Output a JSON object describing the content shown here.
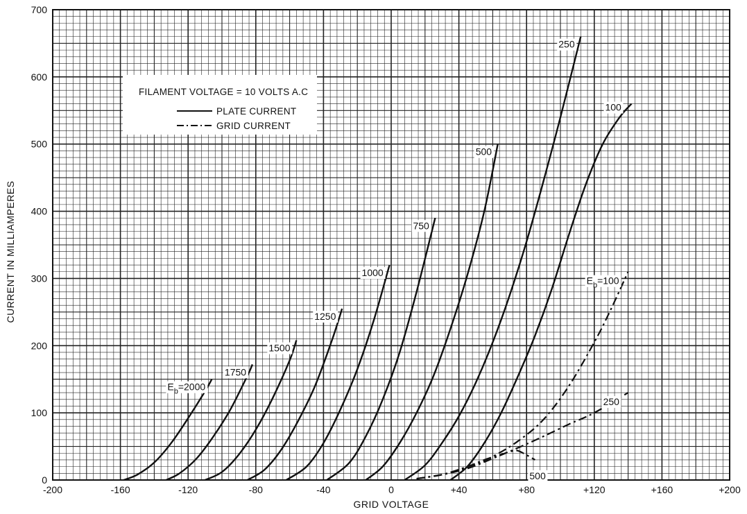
{
  "chart_data": {
    "type": "line",
    "xlabel": "GRID VOLTAGE",
    "ylabel": "CURRENT IN MILLIAMPERES",
    "xlim": [
      -200,
      200
    ],
    "ylim": [
      0,
      700
    ],
    "grid": true,
    "x_ticks": [
      {
        "value": -200,
        "label": "-200"
      },
      {
        "value": -160,
        "label": "-160"
      },
      {
        "value": -120,
        "label": "-120"
      },
      {
        "value": -80,
        "label": "-80"
      },
      {
        "value": -40,
        "label": "-40"
      },
      {
        "value": 0,
        "label": "0"
      },
      {
        "value": 40,
        "label": "+40"
      },
      {
        "value": 80,
        "label": "+80"
      },
      {
        "value": 120,
        "label": "+120"
      },
      {
        "value": 160,
        "label": "+160"
      },
      {
        "value": 200,
        "label": "+200"
      }
    ],
    "y_ticks": [
      {
        "value": 0,
        "label": "0"
      },
      {
        "value": 100,
        "label": "100"
      },
      {
        "value": 200,
        "label": "200"
      },
      {
        "value": 300,
        "label": "300"
      },
      {
        "value": 400,
        "label": "400"
      },
      {
        "value": 500,
        "label": "500"
      },
      {
        "value": 600,
        "label": "600"
      },
      {
        "value": 700,
        "label": "700"
      }
    ],
    "legend": {
      "position": "top-left",
      "title": "FILAMENT VOLTAGE = 10 VOLTS A.C",
      "entries": [
        {
          "label": "PLATE CURRENT",
          "style": "solid"
        },
        {
          "label": "GRID CURRENT",
          "style": "dash-dot"
        }
      ]
    },
    "plate_current": [
      {
        "label": "Eb=2000",
        "x": [
          -158,
          -150,
          -140,
          -130,
          -120,
          -110,
          -106
        ],
        "y": [
          0,
          8,
          26,
          55,
          92,
          132,
          150
        ]
      },
      {
        "label": "1750",
        "x": [
          -133,
          -125,
          -115,
          -105,
          -95,
          -85,
          -82
        ],
        "y": [
          0,
          10,
          32,
          65,
          105,
          155,
          172
        ]
      },
      {
        "label": "1500",
        "x": [
          -110,
          -100,
          -90,
          -80,
          -70,
          -60,
          -56
        ],
        "y": [
          0,
          12,
          38,
          75,
          122,
          178,
          208
        ]
      },
      {
        "label": "1250",
        "x": [
          -85,
          -75,
          -65,
          -55,
          -45,
          -35,
          -29
        ],
        "y": [
          0,
          15,
          45,
          88,
          140,
          208,
          255
        ]
      },
      {
        "label": "1000",
        "x": [
          -62,
          -50,
          -40,
          -30,
          -20,
          -10,
          -1
        ],
        "y": [
          0,
          20,
          55,
          105,
          165,
          240,
          320
        ]
      },
      {
        "label": "750",
        "x": [
          -38,
          -25,
          -15,
          -5,
          5,
          15,
          26
        ],
        "y": [
          0,
          25,
          65,
          120,
          190,
          280,
          390
        ]
      },
      {
        "label": "500",
        "x": [
          -15,
          -5,
          5,
          15,
          25,
          35,
          45,
          55,
          63
        ],
        "y": [
          0,
          20,
          55,
          100,
          155,
          225,
          305,
          400,
          500
        ]
      },
      {
        "label": "250",
        "x": [
          8,
          20,
          30,
          40,
          50,
          60,
          70,
          80,
          90,
          100,
          112
        ],
        "y": [
          0,
          22,
          55,
          95,
          145,
          205,
          275,
          355,
          445,
          540,
          660
        ]
      },
      {
        "label": "100",
        "x": [
          35,
          45,
          55,
          65,
          75,
          85,
          95,
          105,
          115,
          125,
          135,
          142
        ],
        "y": [
          0,
          20,
          55,
          100,
          155,
          215,
          285,
          365,
          440,
          500,
          540,
          560
        ]
      }
    ],
    "grid_current": [
      {
        "label": "Eb=100",
        "x": [
          15,
          30,
          45,
          60,
          75,
          90,
          105,
          120,
          130,
          140
        ],
        "y": [
          2,
          8,
          18,
          35,
          58,
          90,
          140,
          205,
          255,
          310
        ]
      },
      {
        "label": "250",
        "x": [
          15,
          30,
          45,
          60,
          75,
          90,
          105,
          120,
          140
        ],
        "y": [
          2,
          8,
          17,
          32,
          48,
          65,
          83,
          100,
          130
        ]
      },
      {
        "label": "500",
        "x": [
          15,
          30,
          45,
          55,
          65,
          70,
          74,
          78,
          85
        ],
        "y": [
          2,
          8,
          20,
          30,
          38,
          42,
          44,
          40,
          30
        ]
      }
    ]
  }
}
